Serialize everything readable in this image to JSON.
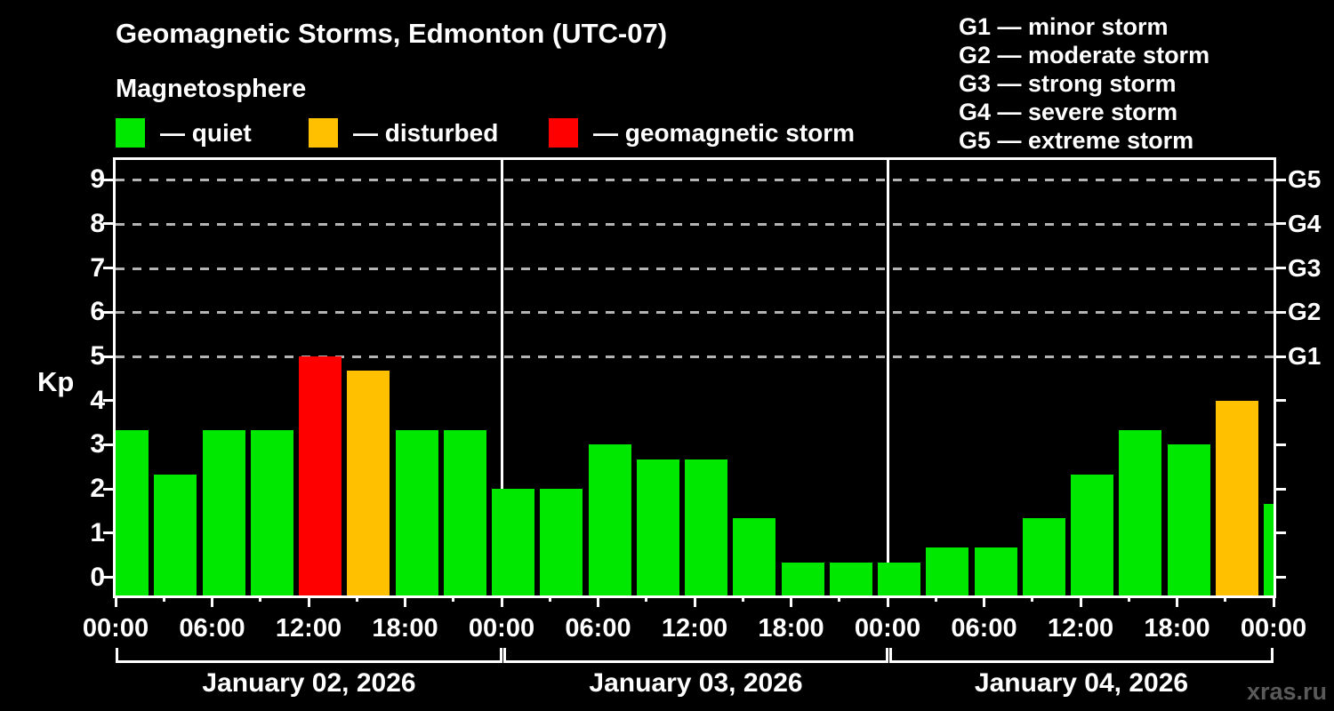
{
  "header": {
    "title": "Geomagnetic Storms, Edmonton (UTC-07)",
    "subtitle": "Magnetosphere"
  },
  "legend": {
    "items": [
      {
        "status": "quiet",
        "label": "— quiet"
      },
      {
        "status": "disturbed",
        "label": "— disturbed"
      },
      {
        "status": "storm",
        "label": "— geomagnetic storm"
      }
    ]
  },
  "g_scale": {
    "items": [
      {
        "code": "G1",
        "label": "G1 — minor storm"
      },
      {
        "code": "G2",
        "label": "G2 — moderate storm"
      },
      {
        "code": "G3",
        "label": "G3 — strong storm"
      },
      {
        "code": "G4",
        "label": "G4 — severe storm"
      },
      {
        "code": "G5",
        "label": "G5 — extreme storm"
      }
    ]
  },
  "chart_data": {
    "type": "bar",
    "ylabel": "Kp",
    "ylim": [
      0,
      9
    ],
    "yticks": [
      0,
      1,
      2,
      3,
      4,
      5,
      6,
      7,
      8,
      9
    ],
    "gridlines_at": [
      5,
      6,
      7,
      8,
      9
    ],
    "grid_style": "dashed horizontal lines at storm levels only",
    "right_axis_labels": [
      {
        "kp": 5,
        "label": "G1"
      },
      {
        "kp": 6,
        "label": "G2"
      },
      {
        "kp": 7,
        "label": "G3"
      },
      {
        "kp": 8,
        "label": "G4"
      },
      {
        "kp": 9,
        "label": "G5"
      }
    ],
    "time_tick_labels": [
      "00:00",
      "06:00",
      "12:00",
      "18:00",
      "00:00",
      "06:00",
      "12:00",
      "18:00",
      "00:00",
      "06:00",
      "12:00",
      "18:00",
      "00:00"
    ],
    "bar_interval_hours": 3,
    "days": [
      {
        "date": "January 02, 2026",
        "values": [
          3.33,
          2.33,
          3.33,
          3.33,
          5.0,
          4.67,
          3.33,
          3.33
        ],
        "status": [
          "quiet",
          "quiet",
          "quiet",
          "quiet",
          "storm",
          "disturbed",
          "quiet",
          "quiet"
        ]
      },
      {
        "date": "January 03, 2026",
        "values": [
          2.0,
          2.0,
          3.0,
          2.67,
          2.67,
          1.33,
          0.33,
          0.33
        ],
        "status": [
          "quiet",
          "quiet",
          "quiet",
          "quiet",
          "quiet",
          "quiet",
          "quiet",
          "quiet"
        ]
      },
      {
        "date": "January 04, 2026",
        "values": [
          0.33,
          0.67,
          0.67,
          1.33,
          2.33,
          3.33,
          3.0,
          4.0
        ],
        "status": [
          "quiet",
          "quiet",
          "quiet",
          "quiet",
          "quiet",
          "quiet",
          "quiet",
          "disturbed"
        ]
      }
    ],
    "next_partial_bar": {
      "value": 1.67,
      "status": "quiet"
    },
    "status_colors": {
      "quiet": "#00e800",
      "disturbed": "#ffc000",
      "storm": "#ff0000"
    }
  },
  "watermark": "xras.ru"
}
